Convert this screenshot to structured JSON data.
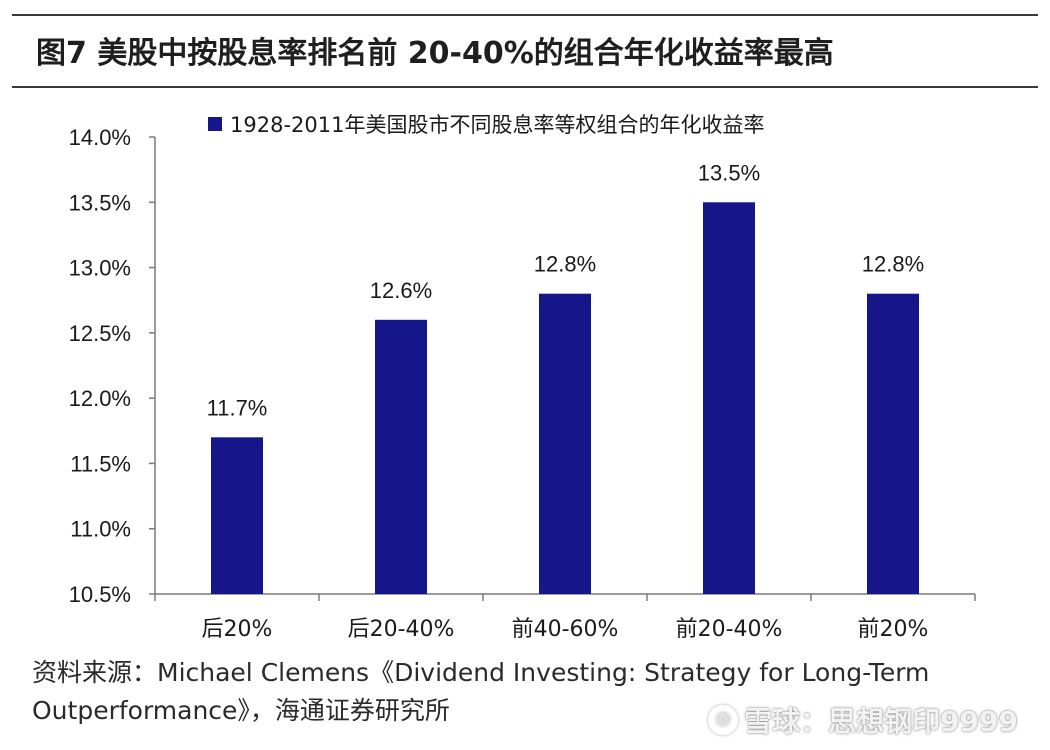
{
  "figure": {
    "title": "图7   美股中按股息率排名前 20-40%的组合年化收益率最高",
    "source": "资料来源：Michael Clemens《Dividend Investing: Strategy for Long-Term Outperformance》，海通证券研究所",
    "watermark": "雪球：思想钢印9999"
  },
  "chart_data": {
    "type": "bar",
    "categories": [
      "后20%",
      "后20-40%",
      "前40-60%",
      "前20-40%",
      "前20%"
    ],
    "series": [
      {
        "name": "1928-2011年美国股市不同股息率等权组合的年化收益率",
        "values": [
          11.7,
          12.6,
          12.8,
          13.5,
          12.8
        ],
        "data_labels": [
          "11.7%",
          "12.6%",
          "12.8%",
          "13.5%",
          "12.8%"
        ]
      }
    ],
    "y_ticks": [
      "14.0%",
      "13.5%",
      "13.0%",
      "12.5%",
      "12.0%",
      "11.5%",
      "11.0%",
      "10.5%"
    ],
    "ylim": [
      10.5,
      14.0
    ],
    "grid": false,
    "legend_position": "top",
    "bar_color": "#15168a"
  }
}
